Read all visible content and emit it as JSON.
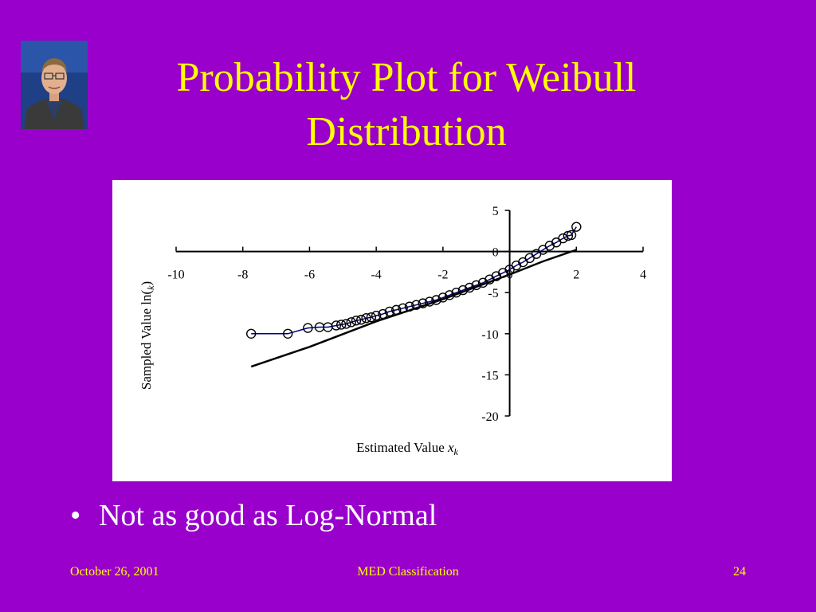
{
  "slide": {
    "title_line1": "Probability Plot for Weibull",
    "title_line2": "Distribution",
    "bullet": "Not as good as Log-Normal",
    "bullet_symbol": "•",
    "footer_date": "October 26, 2001",
    "footer_center": "MED Classification",
    "footer_page": "24",
    "colors": {
      "background": "#9900cc",
      "title": "#ffff00",
      "body_text": "#ffffff",
      "footer": "#ffff00",
      "plot_background": "#ffffff",
      "sample_series": "#000080",
      "fit_line": "#000000"
    },
    "photo_icon": "presenter-portrait-photo"
  },
  "chart_data": {
    "type": "scatter",
    "title": "",
    "xlabel_text": "Estimated Value ",
    "xlabel_var": "x",
    "xlabel_sub": "k",
    "ylabel_text": "Sampled Value ln(",
    "ylabel_var": "",
    "ylabel_sub": "k",
    "ylabel_close": ")",
    "xlim": [
      -10,
      4
    ],
    "ylim": [
      -20,
      5
    ],
    "xticks": [
      -10,
      -8,
      -6,
      -4,
      -2,
      0,
      2,
      4
    ],
    "yticks": [
      5,
      0,
      -5,
      -10,
      -15,
      -20
    ],
    "x_tick_labels": [
      "-10",
      "-8",
      "-6",
      "-4",
      "-2",
      "0",
      "2",
      "4"
    ],
    "y_tick_labels": [
      "5",
      "0",
      "-5",
      "-10",
      "-15",
      "-20"
    ],
    "grid": false,
    "legend": "none",
    "series": [
      {
        "marker": "circle",
        "connected": true,
        "x": [
          -7.75,
          -6.65,
          -6.05,
          -5.7,
          -5.45,
          -5.2,
          -5.05,
          -4.9,
          -4.75,
          -4.6,
          -4.45,
          -4.3,
          -4.15,
          -4.0,
          -3.8,
          -3.6,
          -3.4,
          -3.2,
          -3.0,
          -2.8,
          -2.6,
          -2.4,
          -2.2,
          -2.0,
          -1.8,
          -1.6,
          -1.4,
          -1.2,
          -1.0,
          -0.8,
          -0.6,
          -0.4,
          -0.2,
          0.0,
          0.2,
          0.4,
          0.6,
          0.8,
          1.0,
          1.2,
          1.4,
          1.6,
          1.75,
          1.85,
          2.0
        ],
        "y": [
          -10.0,
          -10.0,
          -9.3,
          -9.2,
          -9.2,
          -9.0,
          -8.9,
          -8.8,
          -8.6,
          -8.4,
          -8.3,
          -8.1,
          -8.0,
          -7.8,
          -7.6,
          -7.3,
          -7.1,
          -6.9,
          -6.7,
          -6.5,
          -6.3,
          -6.1,
          -5.9,
          -5.6,
          -5.3,
          -5.0,
          -4.7,
          -4.4,
          -4.1,
          -3.8,
          -3.4,
          -3.0,
          -2.6,
          -2.2,
          -1.7,
          -1.3,
          -0.8,
          -0.3,
          0.2,
          0.7,
          1.1,
          1.6,
          1.9,
          2.0,
          3.0
        ]
      },
      {
        "marker": "none",
        "connected": true,
        "x": [
          -7.75,
          -6.0,
          -4.0,
          -2.0,
          -1.0,
          0.0,
          1.0,
          2.0
        ],
        "y": [
          -14.0,
          -11.6,
          -8.5,
          -5.8,
          -4.3,
          -2.8,
          -1.2,
          0.2
        ]
      }
    ]
  }
}
